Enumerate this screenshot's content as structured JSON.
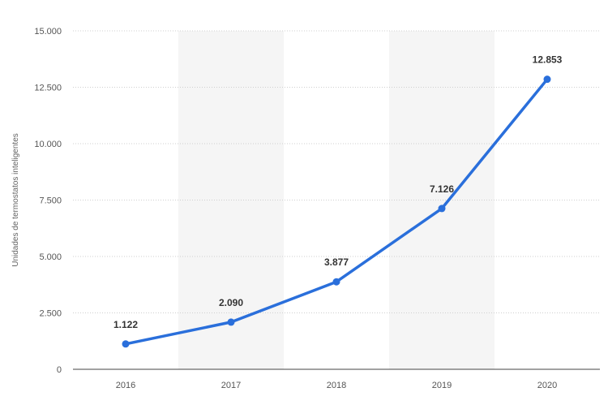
{
  "chart_data": {
    "type": "line",
    "title": "",
    "xlabel": "",
    "ylabel": "Unidades de termostatos inteligentes",
    "categories": [
      "2016",
      "2017",
      "2018",
      "2019",
      "2020"
    ],
    "series": [
      {
        "values": [
          1122,
          2090,
          3877,
          7126,
          12853
        ],
        "labels": [
          "1.122",
          "2.090",
          "3.877",
          "7.126",
          "12.853"
        ],
        "color": "#2a6fdb"
      }
    ],
    "ylim": [
      0,
      15000
    ],
    "yticks": [
      0,
      2500,
      5000,
      7500,
      10000,
      12500,
      15000
    ],
    "ytick_labels": [
      "0",
      "2.500",
      "5.000",
      "7.500",
      "10.000",
      "12.500",
      "15.000"
    ],
    "grid": "horizontal dotted",
    "shaded_bands": [
      "2017",
      "2019"
    ],
    "legend": "none"
  }
}
